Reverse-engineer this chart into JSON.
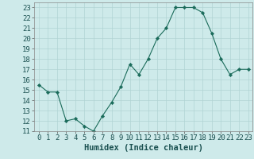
{
  "x": [
    0,
    1,
    2,
    3,
    4,
    5,
    6,
    7,
    8,
    9,
    10,
    11,
    12,
    13,
    14,
    15,
    16,
    17,
    18,
    19,
    20,
    21,
    22,
    23
  ],
  "y": [
    15.5,
    14.8,
    14.8,
    12.0,
    12.2,
    11.5,
    11.0,
    12.5,
    13.8,
    15.3,
    17.5,
    16.5,
    18.0,
    20.0,
    21.0,
    23.0,
    23.0,
    23.0,
    22.5,
    20.5,
    18.0,
    16.5,
    17.0,
    17.0
  ],
  "line_color": "#1a6b5a",
  "marker_color": "#1a6b5a",
  "bg_color": "#ceeaea",
  "grid_color": "#b0d4d4",
  "xlabel": "Humidex (Indice chaleur)",
  "ylim": [
    11,
    23.5
  ],
  "xlim": [
    -0.5,
    23.5
  ],
  "yticks": [
    11,
    12,
    13,
    14,
    15,
    16,
    17,
    18,
    19,
    20,
    21,
    22,
    23
  ],
  "xticks": [
    0,
    1,
    2,
    3,
    4,
    5,
    6,
    7,
    8,
    9,
    10,
    11,
    12,
    13,
    14,
    15,
    16,
    17,
    18,
    19,
    20,
    21,
    22,
    23
  ],
  "xlabel_fontsize": 7.5,
  "tick_fontsize": 6.5
}
